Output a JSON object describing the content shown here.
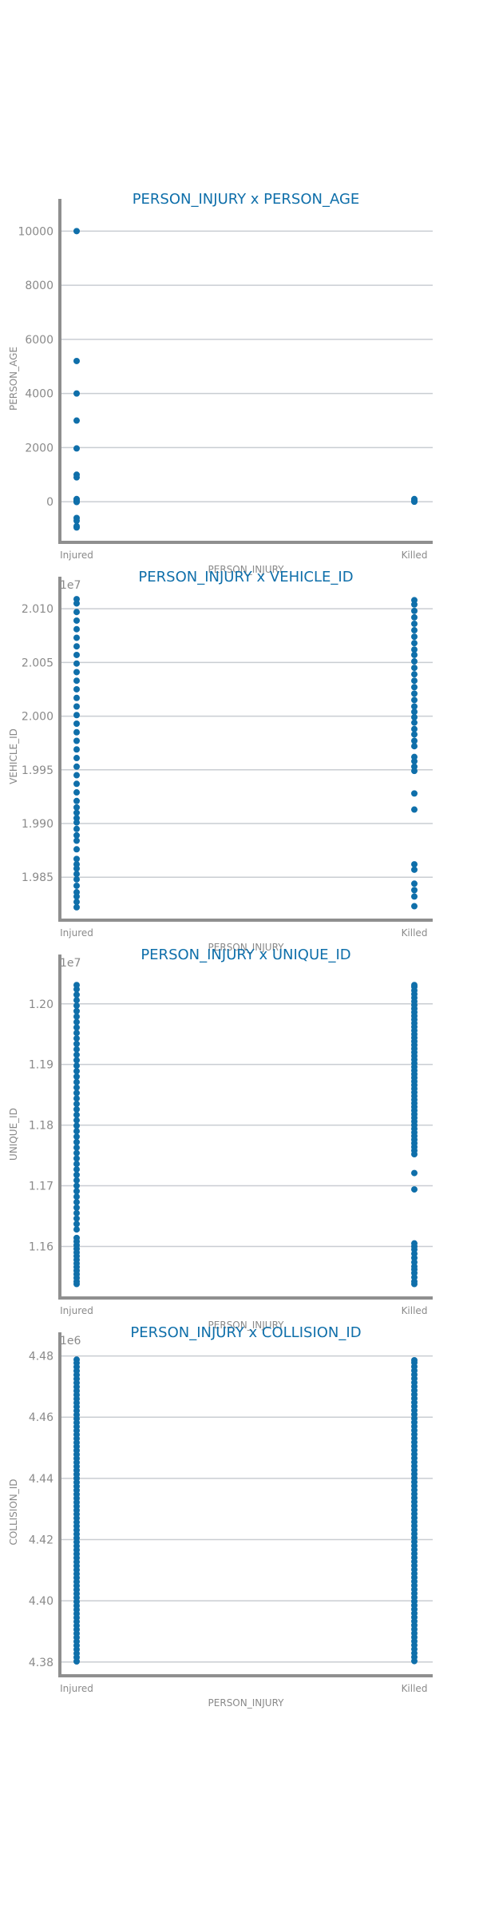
{
  "chart_data": [
    {
      "type": "scatter",
      "title": "PERSON_INJURY x PERSON_AGE",
      "xlabel": "PERSON_INJURY",
      "ylabel": "PERSON_AGE",
      "categories": [
        "Injured",
        "Killed"
      ],
      "y_offset_label": "",
      "yticks": [
        "0",
        "2000",
        "4000",
        "6000",
        "8000",
        "10000"
      ],
      "ytick_values": [
        0,
        2000,
        4000,
        6000,
        8000,
        10000
      ],
      "ylim": [
        -1500,
        10600
      ],
      "grid": true,
      "series": [
        {
          "category": "Injured",
          "values": [
            10000,
            5200,
            4000,
            3000,
            1970,
            1000,
            900,
            100,
            50,
            30,
            20,
            10,
            0,
            -10,
            -600,
            -700,
            -900,
            -950
          ]
        },
        {
          "category": "Killed",
          "values": [
            100,
            60,
            30,
            10,
            0
          ]
        }
      ]
    },
    {
      "type": "scatter",
      "title": "PERSON_INJURY x VEHICLE_ID",
      "xlabel": "PERSON_INJURY",
      "ylabel": "VEHICLE_ID",
      "categories": [
        "Injured",
        "Killed"
      ],
      "y_offset_label": "1e7",
      "yticks": [
        "1.985",
        "1.990",
        "1.995",
        "2.000",
        "2.005",
        "2.010"
      ],
      "ytick_values": [
        1.985,
        1.99,
        1.995,
        2.0,
        2.005,
        2.01
      ],
      "ylim": [
        1.981,
        2.0115
      ],
      "grid": true,
      "series": [
        {
          "category": "Injured",
          "values": [
            1.9822,
            1.9827,
            1.9832,
            1.9836,
            1.9842,
            1.9848,
            1.9853,
            1.9858,
            1.9862,
            1.9867,
            1.9876,
            1.9884,
            1.9889,
            1.9895,
            1.9901,
            1.9905,
            1.991,
            1.9915,
            1.9921,
            1.9929,
            1.9937,
            1.9945,
            1.9953,
            1.9961,
            1.9969,
            1.9977,
            1.9985,
            1.9993,
            2.0001,
            2.0009,
            2.0017,
            2.0025,
            2.0033,
            2.0041,
            2.0049,
            2.0057,
            2.0065,
            2.0073,
            2.0081,
            2.0089,
            2.0097,
            2.0105,
            2.0109
          ]
        },
        {
          "category": "Killed",
          "values": [
            1.9823,
            1.9832,
            1.9838,
            1.9844,
            1.9857,
            1.9862,
            1.9913,
            1.9928,
            1.9949,
            1.9953,
            1.9958,
            1.9962,
            1.9972,
            1.9977,
            1.9983,
            1.9988,
            1.9994,
            1.9999,
            2.0004,
            2.0009,
            2.0015,
            2.0021,
            2.0027,
            2.0033,
            2.0039,
            2.0045,
            2.0051,
            2.0057,
            2.0062,
            2.0068,
            2.0074,
            2.008,
            2.0086,
            2.0092,
            2.0098,
            2.0104,
            2.0108
          ]
        }
      ]
    },
    {
      "type": "scatter",
      "title": "PERSON_INJURY x UNIQUE_ID",
      "xlabel": "PERSON_INJURY",
      "ylabel": "UNIQUE_ID",
      "categories": [
        "Injured",
        "Killed"
      ],
      "y_offset_label": "1e7",
      "yticks": [
        "1.16",
        "1.17",
        "1.18",
        "1.19",
        "1.20"
      ],
      "ytick_values": [
        1.16,
        1.17,
        1.18,
        1.19,
        1.2
      ],
      "ylim": [
        1.1515,
        1.2055
      ],
      "grid": true,
      "series": [
        {
          "category": "Injured",
          "values": [
            1.1538,
            1.1542,
            1.1548,
            1.1554,
            1.156,
            1.1566,
            1.1572,
            1.1578,
            1.1584,
            1.159,
            1.1596,
            1.1602,
            1.1608,
            1.1614,
            1.1628,
            1.1637,
            1.1646,
            1.1655,
            1.1664,
            1.1673,
            1.1682,
            1.1691,
            1.17,
            1.1709,
            1.1718,
            1.1727,
            1.1736,
            1.1745,
            1.1754,
            1.1763,
            1.1772,
            1.1781,
            1.179,
            1.1799,
            1.1808,
            1.1817,
            1.1826,
            1.1835,
            1.1844,
            1.1853,
            1.1862,
            1.1871,
            1.188,
            1.1889,
            1.1898,
            1.1907,
            1.1916,
            1.1925,
            1.1934,
            1.1943,
            1.1952,
            1.1961,
            1.197,
            1.1979,
            1.1988,
            1.1997,
            1.2006,
            1.2015,
            1.2024,
            1.2031
          ]
        },
        {
          "category": "Killed",
          "values": [
            1.1538,
            1.1542,
            1.1549,
            1.1556,
            1.1562,
            1.1567,
            1.1574,
            1.1581,
            1.1588,
            1.1595,
            1.16,
            1.1605,
            1.1694,
            1.1721,
            1.1752,
            1.1758,
            1.1764,
            1.177,
            1.1776,
            1.1782,
            1.1788,
            1.1794,
            1.18,
            1.1806,
            1.1812,
            1.1818,
            1.1824,
            1.183,
            1.1836,
            1.1842,
            1.1848,
            1.1854,
            1.186,
            1.1866,
            1.1872,
            1.1878,
            1.1884,
            1.189,
            1.1896,
            1.1902,
            1.1908,
            1.1914,
            1.192,
            1.1926,
            1.1932,
            1.1938,
            1.1944,
            1.195,
            1.1956,
            1.1962,
            1.1968,
            1.1974,
            1.198,
            1.1986,
            1.1992,
            1.1998,
            1.2004,
            1.201,
            1.2016,
            1.2022,
            1.2028,
            1.2031
          ]
        }
      ]
    },
    {
      "type": "scatter",
      "title": "PERSON_INJURY x COLLISION_ID",
      "xlabel": "PERSON_INJURY",
      "ylabel": "COLLISION_ID",
      "categories": [
        "Injured",
        "Killed"
      ],
      "y_offset_label": "1e6",
      "yticks": [
        "4.38",
        "4.40",
        "4.42",
        "4.44",
        "4.46",
        "4.48"
      ],
      "ytick_values": [
        4.38,
        4.4,
        4.42,
        4.44,
        4.46,
        4.48
      ],
      "ylim": [
        4.3755,
        4.4825
      ],
      "grid": true,
      "series": [
        {
          "category": "Injured",
          "values": [
            4.3802,
            4.3815,
            4.3828,
            4.3841,
            4.3854,
            4.3867,
            4.388,
            4.3893,
            4.3906,
            4.3919,
            4.3932,
            4.3945,
            4.3958,
            4.3971,
            4.3984,
            4.3997,
            4.401,
            4.4023,
            4.4036,
            4.4049,
            4.4062,
            4.4075,
            4.4088,
            4.4101,
            4.4114,
            4.4127,
            4.414,
            4.4153,
            4.4166,
            4.4179,
            4.4192,
            4.4205,
            4.4218,
            4.4231,
            4.4244,
            4.4257,
            4.427,
            4.4283,
            4.4296,
            4.4309,
            4.4322,
            4.4335,
            4.4348,
            4.4361,
            4.4374,
            4.4387,
            4.44,
            4.4413,
            4.4426,
            4.4439,
            4.4452,
            4.4465,
            4.4478,
            4.4491,
            4.4504,
            4.4517,
            4.453,
            4.4543,
            4.4556,
            4.4569,
            4.4582,
            4.4595,
            4.4608,
            4.4621,
            4.4634,
            4.4647,
            4.466,
            4.4673,
            4.4686,
            4.4699,
            4.4712,
            4.4725,
            4.4738,
            4.4751,
            4.4764,
            4.4777,
            4.4788
          ]
        },
        {
          "category": "Killed",
          "values": [
            4.3803,
            4.3816,
            4.3829,
            4.3842,
            4.3855,
            4.3868,
            4.3881,
            4.3894,
            4.3907,
            4.392,
            4.3933,
            4.3946,
            4.3959,
            4.3972,
            4.3985,
            4.3998,
            4.4011,
            4.4024,
            4.4037,
            4.405,
            4.4063,
            4.4076,
            4.4089,
            4.4102,
            4.4115,
            4.4128,
            4.4141,
            4.4154,
            4.4167,
            4.418,
            4.4193,
            4.4206,
            4.4219,
            4.4232,
            4.4245,
            4.4258,
            4.4271,
            4.4284,
            4.4297,
            4.431,
            4.4323,
            4.4336,
            4.4349,
            4.4362,
            4.4375,
            4.4388,
            4.4401,
            4.4414,
            4.4427,
            4.444,
            4.4453,
            4.4466,
            4.4479,
            4.4492,
            4.4505,
            4.4518,
            4.4531,
            4.4544,
            4.4557,
            4.457,
            4.4583,
            4.4596,
            4.4609,
            4.4622,
            4.4635,
            4.4648,
            4.4661,
            4.4674,
            4.4687,
            4.47,
            4.4713,
            4.4726,
            4.4739,
            4.4752,
            4.4765,
            4.4778,
            4.4786
          ]
        }
      ]
    }
  ]
}
